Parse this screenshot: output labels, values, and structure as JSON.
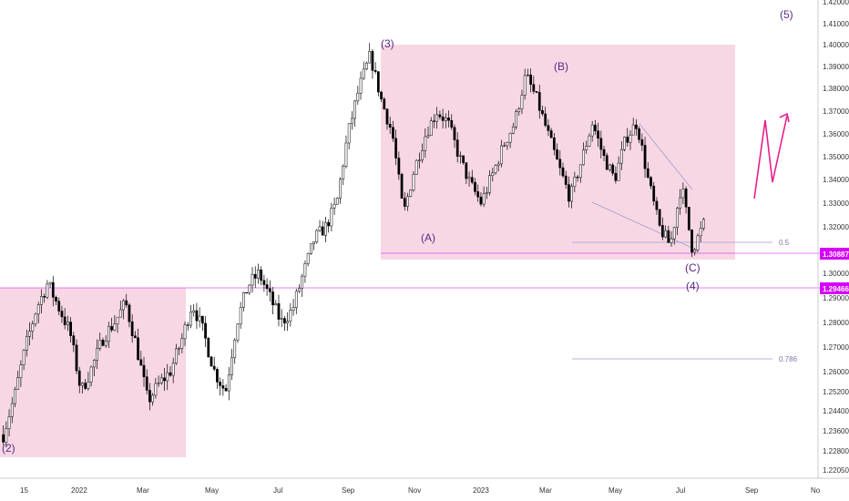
{
  "chart_data": {
    "type": "candlestick",
    "x_ticks": [
      "15",
      "2022",
      "Mar",
      "May",
      "Jul",
      "Sep",
      "Nov",
      "2023",
      "Mar",
      "May",
      "Jul",
      "Sep",
      "No"
    ],
    "y_ticks": [
      "1.42000",
      "1.41000",
      "1.40000",
      "1.39000",
      "1.38000",
      "1.37000",
      "1.36000",
      "1.35000",
      "1.34000",
      "1.33000",
      "1.32000",
      "1.31000",
      "1.30000",
      "1.29000",
      "1.28000",
      "1.27000",
      "1.26000",
      "1.25200",
      "1.24400",
      "1.23600",
      "1.22800",
      "1.22050"
    ],
    "price_tags": [
      {
        "label": "1.30887",
        "color": "#d500f9"
      },
      {
        "label": "1.29466",
        "color": "#d500f9"
      }
    ],
    "wave_labels": [
      "(2)",
      "(3)",
      "(A)",
      "(B)",
      "(C)",
      "(4)",
      "(5)"
    ],
    "fib_levels": [
      "0.5",
      "0.786"
    ],
    "colors": {
      "candles": "#000000",
      "zone_fill": "#f8d7e5",
      "projection_arrow": "#e91e8c",
      "wave_label": "#5b2a86",
      "fib_line": "#9e9ec8",
      "horizontal_line": "#d500f9"
    },
    "price_path": [
      [
        "15",
        1.2345
      ],
      [
        "",
        1.25
      ],
      [
        "",
        1.27
      ],
      [
        "",
        1.286
      ],
      [
        "",
        1.296
      ],
      [
        "2022",
        1.286
      ],
      [
        "",
        1.276
      ],
      [
        "",
        1.252
      ],
      [
        "",
        1.262
      ],
      [
        "",
        1.274
      ],
      [
        "Mar",
        1.28
      ],
      [
        "",
        1.288
      ],
      [
        "",
        1.27
      ],
      [
        "",
        1.248
      ],
      [
        "",
        1.255
      ],
      [
        "",
        1.26
      ],
      [
        "May",
        1.272
      ],
      [
        "",
        1.288
      ],
      [
        "",
        1.276
      ],
      [
        "",
        1.26
      ],
      [
        "",
        1.252
      ],
      [
        "",
        1.28
      ],
      [
        "Jul",
        1.295
      ],
      [
        "",
        1.3
      ],
      [
        "",
        1.29
      ],
      [
        "",
        1.28
      ],
      [
        "",
        1.285
      ],
      [
        "",
        1.3
      ],
      [
        "Sep",
        1.315
      ],
      [
        "",
        1.32
      ],
      [
        "",
        1.33
      ],
      [
        "",
        1.36
      ],
      [
        "",
        1.38
      ],
      [
        "",
        1.395
      ],
      [
        "Nov",
        1.375
      ],
      [
        "",
        1.36
      ],
      [
        "",
        1.325
      ],
      [
        "",
        1.345
      ],
      [
        "",
        1.36
      ],
      [
        "",
        1.37
      ],
      [
        "2023",
        1.365
      ],
      [
        "",
        1.35
      ],
      [
        "",
        1.338
      ],
      [
        "",
        1.33
      ],
      [
        "",
        1.342
      ],
      [
        "",
        1.355
      ],
      [
        "Mar",
        1.365
      ],
      [
        "",
        1.386
      ],
      [
        "",
        1.375
      ],
      [
        "",
        1.36
      ],
      [
        "",
        1.345
      ],
      [
        "",
        1.332
      ],
      [
        "May",
        1.348
      ],
      [
        "",
        1.365
      ],
      [
        "",
        1.35
      ],
      [
        "",
        1.34
      ],
      [
        "",
        1.358
      ],
      [
        "",
        1.365
      ],
      [
        "",
        1.34
      ],
      [
        "",
        1.32
      ],
      [
        "Jul",
        1.312
      ],
      [
        "",
        1.338
      ],
      [
        "",
        1.31
      ],
      [
        "",
        1.321
      ]
    ]
  }
}
